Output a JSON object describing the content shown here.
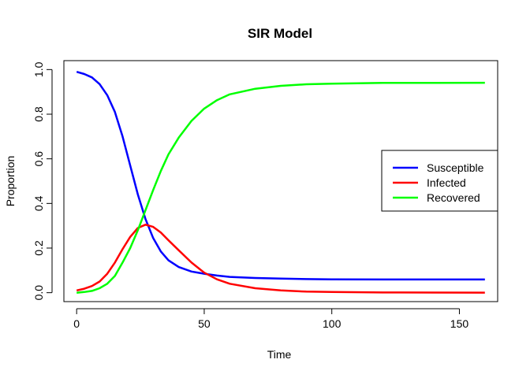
{
  "chart_data": {
    "type": "line",
    "title": "SIR Model",
    "xlabel": "Time",
    "ylabel": "Proportion",
    "xlim": [
      -5,
      165
    ],
    "ylim": [
      -0.04,
      1.04
    ],
    "x_ticks": [
      0,
      50,
      100,
      150
    ],
    "y_ticks": [
      0.0,
      0.2,
      0.4,
      0.6,
      0.8,
      1.0
    ],
    "x_tick_labels": [
      "0",
      "50",
      "100",
      "150"
    ],
    "y_tick_labels": [
      "0.0",
      "0.2",
      "0.4",
      "0.6",
      "0.8",
      "1.0"
    ],
    "grid": false,
    "legend_position": "right",
    "series": [
      {
        "name": "Susceptible",
        "color": "#0000FF",
        "x": [
          0,
          3,
          6,
          9,
          12,
          15,
          18,
          21,
          24,
          27,
          30,
          33,
          36,
          40,
          45,
          50,
          55,
          60,
          70,
          80,
          90,
          100,
          120,
          140,
          160
        ],
        "y": [
          0.99,
          0.98,
          0.965,
          0.935,
          0.885,
          0.81,
          0.7,
          0.57,
          0.44,
          0.33,
          0.245,
          0.185,
          0.145,
          0.115,
          0.095,
          0.085,
          0.077,
          0.071,
          0.066,
          0.063,
          0.061,
          0.06,
          0.059,
          0.059,
          0.059
        ]
      },
      {
        "name": "Infected",
        "color": "#FF0000",
        "x": [
          0,
          3,
          6,
          9,
          12,
          15,
          18,
          21,
          24,
          27,
          30,
          33,
          36,
          40,
          45,
          50,
          55,
          60,
          70,
          80,
          90,
          100,
          120,
          140,
          160
        ],
        "y": [
          0.01,
          0.018,
          0.03,
          0.05,
          0.085,
          0.135,
          0.195,
          0.25,
          0.29,
          0.305,
          0.295,
          0.27,
          0.235,
          0.19,
          0.135,
          0.09,
          0.06,
          0.04,
          0.02,
          0.01,
          0.005,
          0.003,
          0.001,
          0.0005,
          0.0002
        ]
      },
      {
        "name": "Recovered",
        "color": "#00FF00",
        "x": [
          0,
          3,
          6,
          9,
          12,
          15,
          18,
          21,
          24,
          27,
          30,
          33,
          36,
          40,
          45,
          50,
          55,
          60,
          70,
          80,
          90,
          100,
          120,
          140,
          160
        ],
        "y": [
          0.0,
          0.003,
          0.008,
          0.02,
          0.04,
          0.075,
          0.135,
          0.2,
          0.28,
          0.37,
          0.46,
          0.545,
          0.62,
          0.695,
          0.77,
          0.825,
          0.863,
          0.889,
          0.914,
          0.927,
          0.934,
          0.937,
          0.94,
          0.94,
          0.941
        ]
      }
    ]
  }
}
